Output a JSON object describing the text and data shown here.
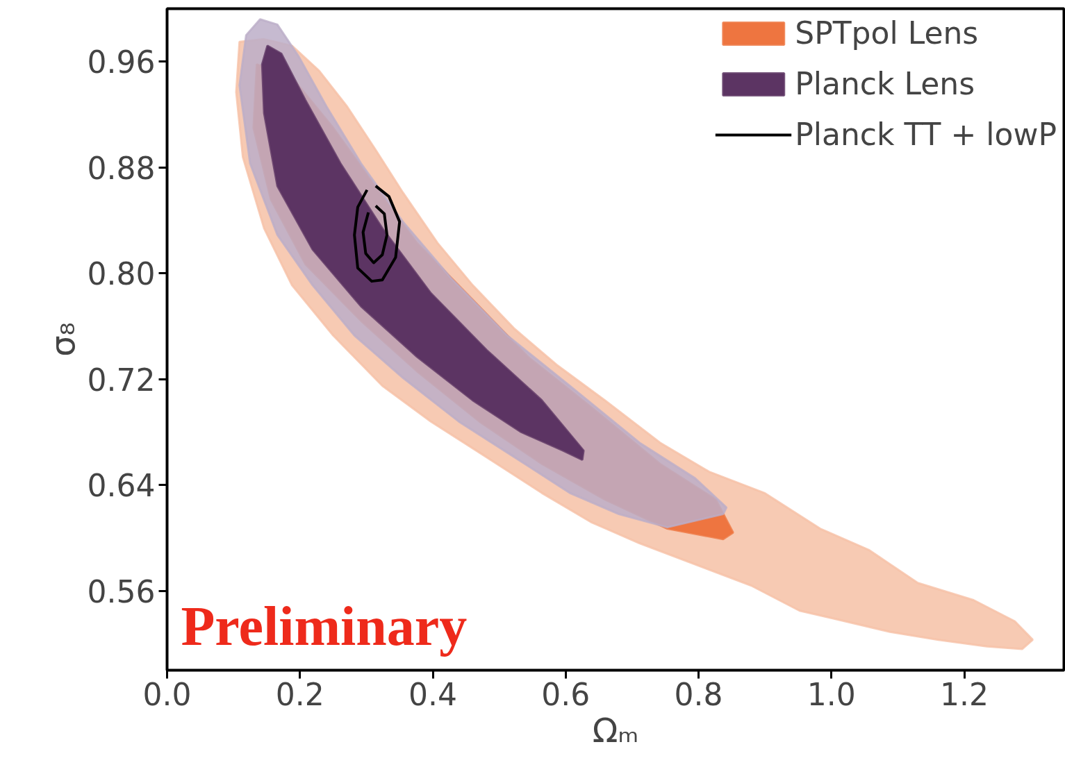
{
  "chart_data": {
    "type": "area",
    "xlabel": "Ωₘ",
    "ylabel": "σ₈",
    "xlim": [
      0,
      1.35
    ],
    "ylim": [
      0.5,
      1.0
    ],
    "xticks": [
      {
        "value": 0,
        "label": "0.0"
      },
      0.2,
      0.4,
      0.6,
      0.8,
      {
        "value": 1,
        "label": "1.0"
      },
      1.2
    ],
    "yticks": [
      0.56,
      {
        "value": 0.64,
        "label": "0.64"
      },
      0.72,
      {
        "value": 0.8,
        "label": "0.80"
      },
      0.88,
      0.96
    ],
    "grid": false,
    "legend": "top right",
    "annotations": [
      "Preliminary"
    ],
    "series": [
      {
        "color": "#f6c1a6",
        "x": [
          0.109,
          0.146,
          0.188,
          0.229,
          0.271,
          0.313,
          0.355,
          0.407,
          0.46,
          0.523,
          0.586,
          0.659,
          0.742,
          0.816,
          0.899,
          0.983,
          1.056,
          1.13,
          1.214,
          1.276,
          1.303,
          1.287,
          1.234,
          1.161,
          1.088,
          1.004,
          0.952,
          0.879,
          0.795,
          0.711,
          0.638,
          0.564,
          0.481,
          0.397,
          0.324,
          0.25,
          0.188,
          0.146,
          0.114,
          0.104
        ],
        "values": [
          0.975,
          0.977,
          0.972,
          0.953,
          0.926,
          0.894,
          0.861,
          0.823,
          0.791,
          0.758,
          0.731,
          0.704,
          0.672,
          0.65,
          0.634,
          0.607,
          0.591,
          0.566,
          0.553,
          0.537,
          0.523,
          0.516,
          0.518,
          0.523,
          0.529,
          0.539,
          0.545,
          0.564,
          0.58,
          0.596,
          0.612,
          0.634,
          0.661,
          0.688,
          0.715,
          0.753,
          0.791,
          0.834,
          0.888,
          0.937
        ]
      },
      {
        "name": "SPTpol Lens",
        "color": "#ee7540",
        "x": [
          0.135,
          0.188,
          0.25,
          0.313,
          0.376,
          0.46,
          0.543,
          0.638,
          0.742,
          0.826,
          0.852,
          0.837,
          0.753,
          0.659,
          0.564,
          0.47,
          0.376,
          0.292,
          0.208,
          0.156,
          0.13
        ],
        "values": [
          0.958,
          0.948,
          0.91,
          0.866,
          0.823,
          0.78,
          0.737,
          0.699,
          0.656,
          0.629,
          0.604,
          0.599,
          0.607,
          0.629,
          0.656,
          0.688,
          0.726,
          0.764,
          0.807,
          0.856,
          0.91
        ]
      },
      {
        "color": "#bcaec8",
        "x": [
          0.14,
          0.166,
          0.198,
          0.24,
          0.292,
          0.355,
          0.428,
          0.512,
          0.606,
          0.711,
          0.795,
          0.842,
          0.837,
          0.753,
          0.68,
          0.606,
          0.523,
          0.439,
          0.355,
          0.282,
          0.219,
          0.166,
          0.125,
          0.109,
          0.119
        ],
        "values": [
          0.992,
          0.988,
          0.964,
          0.926,
          0.883,
          0.839,
          0.796,
          0.753,
          0.715,
          0.672,
          0.645,
          0.623,
          0.618,
          0.608,
          0.618,
          0.634,
          0.661,
          0.688,
          0.721,
          0.753,
          0.791,
          0.829,
          0.883,
          0.942,
          0.98
        ]
      },
      {
        "name": "Planck Lens",
        "color": "#5c3463",
        "x": [
          0.151,
          0.172,
          0.208,
          0.261,
          0.324,
          0.397,
          0.481,
          0.564,
          0.627,
          0.625,
          0.596,
          0.533,
          0.46,
          0.376,
          0.292,
          0.219,
          0.166,
          0.146,
          0.143
        ],
        "values": [
          0.972,
          0.966,
          0.931,
          0.883,
          0.834,
          0.785,
          0.742,
          0.704,
          0.666,
          0.659,
          0.666,
          0.68,
          0.704,
          0.737,
          0.775,
          0.818,
          0.866,
          0.921,
          0.958
        ]
      },
      {
        "type": "line",
        "name": "Planck TT + lowP",
        "color": "#000000",
        "x": [
          0.314,
          0.334,
          0.35,
          0.344,
          0.324,
          0.308,
          0.287,
          0.282,
          0.287,
          0.301
        ],
        "values": [
          0.866,
          0.858,
          0.839,
          0.812,
          0.795,
          0.794,
          0.804,
          0.829,
          0.85,
          0.863
        ]
      },
      {
        "type": "line",
        "color": "#000000",
        "x": [
          0.314,
          0.327,
          0.331,
          0.324,
          0.311,
          0.299,
          0.295,
          0.303
        ],
        "values": [
          0.851,
          0.845,
          0.829,
          0.814,
          0.808,
          0.815,
          0.831,
          0.846
        ]
      }
    ]
  }
}
